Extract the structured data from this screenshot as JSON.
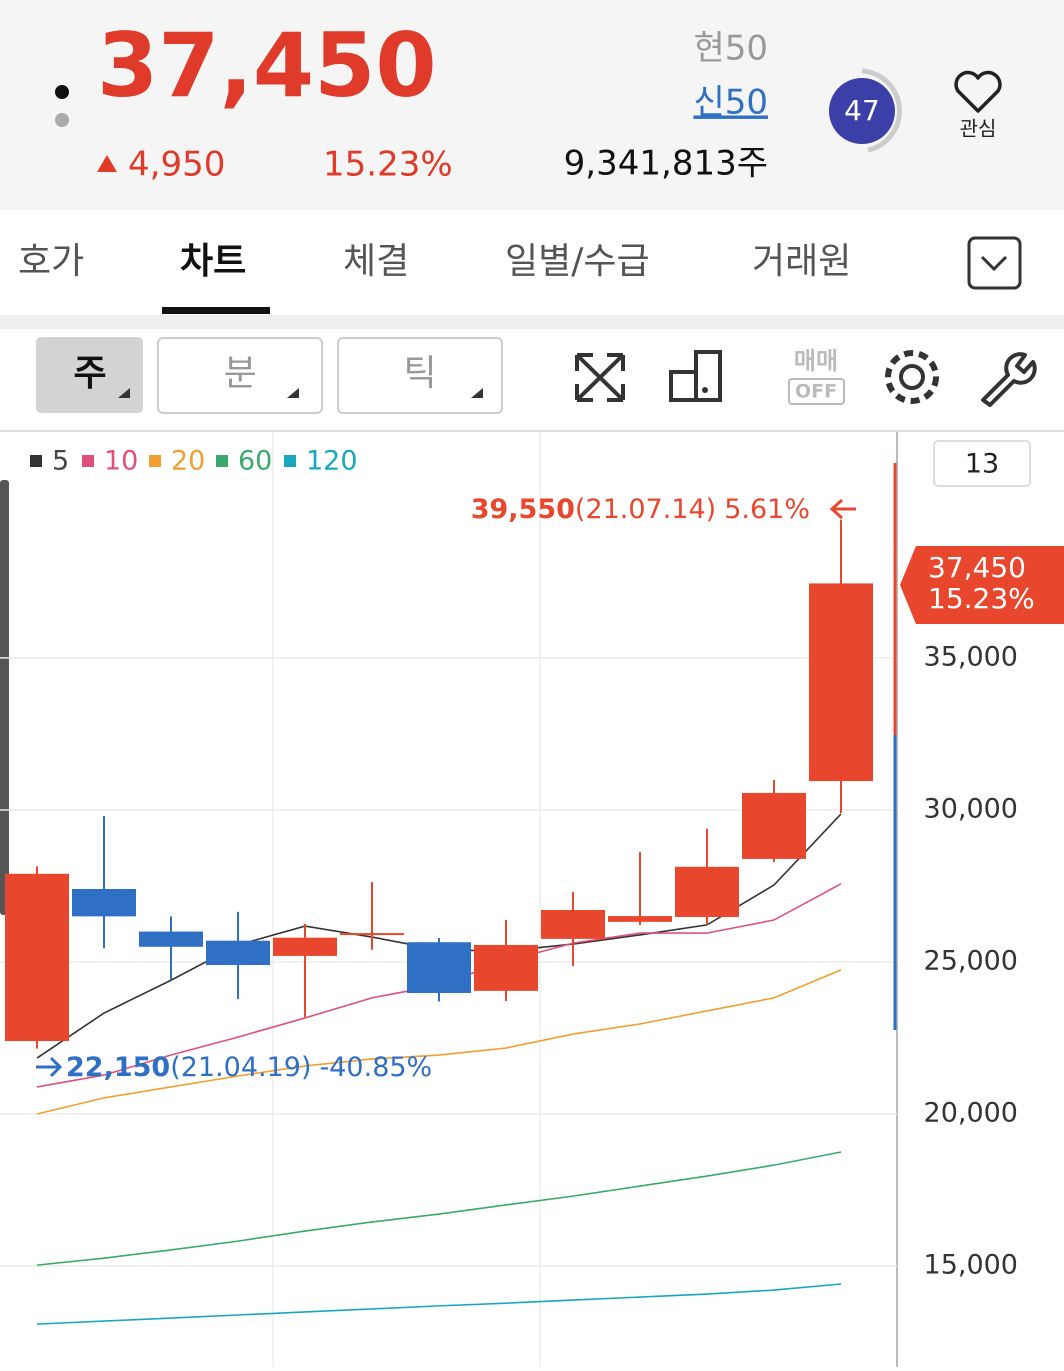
{
  "header": {
    "price": "37,450",
    "change": "4,950",
    "change_pct": "15.23%",
    "label_a": "현50",
    "label_b": "신50",
    "volume": "9,341,813주",
    "badge": "47",
    "favorite": "관심"
  },
  "tabs": [
    "호가",
    "차트",
    "체결",
    "일별/수급",
    "거래원"
  ],
  "toolbar": {
    "buttons": [
      "주",
      "분",
      "틱"
    ],
    "trade_top": "매매",
    "trade_bottom": "OFF"
  },
  "chart_data": {
    "type": "candlestick",
    "count_label": "13",
    "candles": [
      {
        "open": 22400,
        "high": 28150,
        "low": 22150,
        "close": 27900
      },
      {
        "open": 27400,
        "high": 29800,
        "low": 25450,
        "close": 26500
      },
      {
        "open": 26000,
        "high": 26500,
        "low": 24400,
        "close": 25500
      },
      {
        "open": 25700,
        "high": 26650,
        "low": 23780,
        "close": 24900
      },
      {
        "open": 25200,
        "high": 26250,
        "low": 23190,
        "close": 25800
      },
      {
        "open": 25900,
        "high": 27630,
        "low": 25400,
        "close": 25950
      },
      {
        "open": 25650,
        "high": 25790,
        "low": 23700,
        "close": 23980
      },
      {
        "open": 24050,
        "high": 26380,
        "low": 23720,
        "close": 25560
      },
      {
        "open": 25760,
        "high": 27300,
        "low": 24870,
        "close": 26710
      },
      {
        "open": 26320,
        "high": 28620,
        "low": 26220,
        "close": 26510
      },
      {
        "open": 26480,
        "high": 29380,
        "low": 26220,
        "close": 28130
      },
      {
        "open": 28390,
        "high": 30990,
        "low": 28290,
        "close": 30560
      },
      {
        "open": 30950,
        "high": 39550,
        "low": 29900,
        "close": 37450
      }
    ],
    "up_color": "#e8472e",
    "down_color": "#2f6fc4",
    "series": [
      {
        "name": "5",
        "color": "#333333",
        "values": [
          21840,
          23320,
          24400,
          25560,
          26180,
          25820,
          25400,
          25360,
          25590,
          25890,
          26220,
          27530,
          29870
        ]
      },
      {
        "name": "10",
        "color": "#e0507a",
        "values": [
          20890,
          21280,
          21940,
          22530,
          23160,
          23820,
          24240,
          25030,
          25620,
          25950,
          25950,
          26380,
          27570
        ]
      },
      {
        "name": "20",
        "color": "#f0a030",
        "values": [
          20000,
          20530,
          20890,
          21250,
          21580,
          21810,
          21940,
          22170,
          22630,
          22960,
          23390,
          23820,
          24740
        ]
      },
      {
        "name": "60",
        "color": "#3aaa6a",
        "values": [
          15030,
          15260,
          15530,
          15820,
          16150,
          16450,
          16710,
          17010,
          17300,
          17630,
          17960,
          18320,
          18750
        ]
      },
      {
        "name": "120",
        "color": "#17a8c0",
        "values": [
          13090,
          13190,
          13290,
          13390,
          13490,
          13590,
          13690,
          13780,
          13880,
          13980,
          14080,
          14210,
          14410
        ]
      }
    ],
    "ylim": [
      11680,
      42430
    ],
    "yticks": [
      {
        "value": 15000,
        "label": "15,000"
      },
      {
        "value": 20000,
        "label": "20,000"
      },
      {
        "value": 25000,
        "label": "25,000"
      },
      {
        "value": 30000,
        "label": "30,000"
      },
      {
        "value": 35000,
        "label": "35,000"
      }
    ],
    "grid": true,
    "current": {
      "price": "37,450",
      "pct": "15.23%"
    },
    "high_note": {
      "price": "39,550",
      "date": "(21.07.14)",
      "pct": "5.61%"
    },
    "low_note": {
      "price": "22,150",
      "date": "(21.04.19)",
      "pct": "-40.85%"
    }
  }
}
